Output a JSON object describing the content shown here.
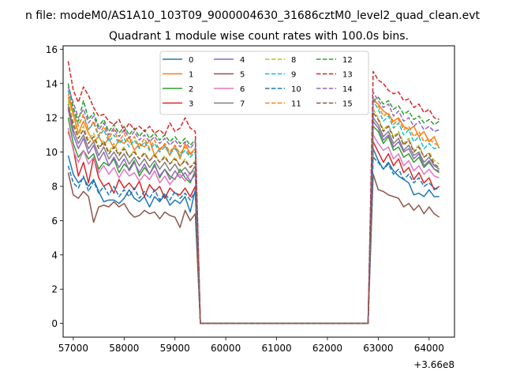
{
  "chart_data": {
    "type": "line",
    "suptitle": "n file: modeM0/AS1A10_103T09_9000004630_31686cztM0_level2_quad_clean.evt",
    "title": "Quadrant 1 module wise count rates with 100.0s bins.",
    "xlabel": "",
    "ylabel": "",
    "x_offset_label": "+3.66e8",
    "xlim": [
      56800,
      64500
    ],
    "ylim": [
      -0.8,
      16.2
    ],
    "xticks": [
      57000,
      58000,
      59000,
      60000,
      61000,
      62000,
      63000,
      64000
    ],
    "xtick_labels": [
      "57000",
      "58000",
      "59000",
      "60000",
      "61000",
      "62000",
      "63000",
      "64000"
    ],
    "yticks": [
      0,
      2,
      4,
      6,
      8,
      10,
      12,
      14,
      16
    ],
    "ytick_labels": [
      "0",
      "2",
      "4",
      "6",
      "8",
      "10",
      "12",
      "14",
      "16"
    ],
    "gap": {
      "drop_start": 59400,
      "zero_start": 59500,
      "zero_end": 62800,
      "rise_end": 62900
    },
    "segment1": {
      "x_start": 56900,
      "x_end": 59400,
      "step": 100
    },
    "segment2": {
      "x_start": 62900,
      "x_end": 64200,
      "step": 100
    },
    "legend_location": "upper-center",
    "series": [
      {
        "name": "0",
        "color": "#1f77b4",
        "dash": "solid",
        "seg1": [
          9.8,
          8.7,
          8.2,
          8.5,
          8.0,
          8.4,
          7.7,
          7.1,
          7.2,
          7.2,
          7.0,
          7.3,
          7.8,
          7.3,
          7.1,
          7.4,
          6.8,
          7.4,
          7.1,
          7.5,
          6.9,
          7.2,
          7.0,
          7.4,
          6.5,
          7.8
        ],
        "seg2": [
          10.2,
          9.5,
          9.0,
          9.4,
          8.9,
          8.6,
          8.4,
          8.2,
          7.5,
          7.6,
          7.4,
          7.8,
          7.4,
          7.4
        ]
      },
      {
        "name": "1",
        "color": "#ff7f0e",
        "dash": "solid",
        "seg1": [
          13.2,
          12.2,
          11.1,
          11.8,
          11.1,
          10.6,
          10.9,
          10.4,
          10.8,
          10.2,
          10.7,
          10.5,
          10.9,
          10.1,
          10.5,
          10.3,
          10.7,
          9.8,
          10.2,
          10.4,
          9.8,
          10.4,
          9.6,
          10.5,
          9.9,
          10.2
        ],
        "seg2": [
          13.0,
          12.8,
          12.4,
          12.2,
          11.8,
          12.0,
          11.5,
          11.3,
          11.5,
          10.9,
          11.2,
          10.6,
          10.9,
          10.2
        ]
      },
      {
        "name": "2",
        "color": "#2ca02c",
        "dash": "solid",
        "seg1": [
          12.0,
          10.5,
          9.7,
          10.1,
          9.6,
          9.9,
          9.0,
          9.4,
          9.2,
          9.6,
          8.8,
          9.3,
          9.0,
          9.5,
          8.6,
          9.1,
          8.7,
          9.3,
          8.5,
          9.0,
          8.6,
          8.4,
          9.0,
          8.5,
          8.2,
          8.9
        ],
        "seg2": [
          11.5,
          11.2,
          10.5,
          10.9,
          10.1,
          10.3,
          9.7,
          9.9,
          9.4,
          9.7,
          9.1,
          9.4,
          9.0,
          8.8
        ]
      },
      {
        "name": "3",
        "color": "#d62728",
        "dash": "solid",
        "seg1": [
          11.2,
          10.2,
          8.6,
          9.4,
          8.2,
          9.7,
          8.5,
          8.0,
          8.2,
          7.6,
          8.4,
          7.9,
          8.2,
          7.8,
          8.3,
          7.4,
          8.1,
          7.7,
          8.0,
          7.3,
          7.9,
          7.6,
          7.5,
          7.9,
          7.4,
          8.0
        ],
        "seg2": [
          10.6,
          10.0,
          9.4,
          9.9,
          9.2,
          9.6,
          8.8,
          9.1,
          8.4,
          8.8,
          8.2,
          8.5,
          7.8,
          8.0
        ]
      },
      {
        "name": "4",
        "color": "#9467bd",
        "dash": "solid",
        "seg1": [
          12.5,
          11.0,
          10.2,
          10.8,
          9.9,
          10.4,
          9.5,
          10.0,
          9.2,
          9.7,
          9.1,
          9.6,
          8.9,
          9.4,
          8.8,
          9.3,
          8.7,
          9.2,
          8.6,
          9.0,
          8.4,
          8.9,
          8.5,
          8.8,
          8.3,
          8.7
        ],
        "seg2": [
          11.8,
          11.4,
          10.7,
          11.0,
          10.3,
          10.6,
          10.0,
          10.2,
          9.6,
          9.9,
          9.2,
          9.5,
          9.0,
          8.9
        ]
      },
      {
        "name": "5",
        "color": "#8c564b",
        "dash": "solid",
        "seg1": [
          8.8,
          7.5,
          7.3,
          7.7,
          7.4,
          5.9,
          6.8,
          6.9,
          6.8,
          7.1,
          6.8,
          7.0,
          6.5,
          6.2,
          6.3,
          6.6,
          6.4,
          6.5,
          6.1,
          6.5,
          6.3,
          6.2,
          5.6,
          6.6,
          6.0,
          6.4
        ],
        "seg2": [
          8.7,
          7.8,
          7.7,
          7.5,
          7.4,
          7.3,
          6.8,
          7.0,
          6.6,
          6.9,
          6.4,
          6.8,
          6.4,
          6.2
        ]
      },
      {
        "name": "6",
        "color": "#e377c2",
        "dash": "solid",
        "seg1": [
          11.4,
          10.1,
          9.4,
          10.1,
          9.3,
          9.7,
          8.8,
          9.2,
          8.7,
          9.1,
          8.5,
          9.0,
          8.6,
          8.8,
          8.3,
          8.7,
          8.4,
          8.9,
          8.2,
          8.6,
          8.1,
          8.5,
          8.7,
          8.3,
          8.8,
          8.9
        ],
        "seg2": [
          11.0,
          10.5,
          10.1,
          10.3,
          9.6,
          9.9,
          9.2,
          9.5,
          8.9,
          9.2,
          8.7,
          9.0,
          8.6,
          8.5
        ]
      },
      {
        "name": "7",
        "color": "#7f7f7f",
        "dash": "solid",
        "seg1": [
          12.8,
          11.3,
          10.5,
          11.0,
          10.2,
          10.6,
          9.8,
          10.3,
          9.6,
          10.0,
          9.5,
          9.9,
          9.3,
          9.7,
          9.2,
          9.6,
          9.1,
          9.5,
          9.0,
          9.4,
          8.9,
          9.3,
          8.8,
          9.1,
          8.7,
          9.2
        ],
        "seg2": [
          12.0,
          11.6,
          10.9,
          11.2,
          10.5,
          10.8,
          10.1,
          10.4,
          9.8,
          10.0,
          9.4,
          9.7,
          9.2,
          9.0
        ]
      },
      {
        "name": "8",
        "color": "#bcbd22",
        "dash": "dashed",
        "seg1": [
          13.0,
          11.8,
          11.0,
          11.5,
          10.7,
          11.1,
          10.3,
          10.7,
          10.0,
          10.5,
          9.9,
          10.3,
          9.7,
          10.1,
          9.6,
          10.0,
          9.5,
          9.9,
          9.4,
          9.8,
          9.3,
          9.7,
          9.2,
          9.6,
          9.1,
          9.5
        ],
        "seg2": [
          12.5,
          12.0,
          11.3,
          11.6,
          10.9,
          11.2,
          10.5,
          10.8,
          10.1,
          10.4,
          9.7,
          10.0,
          9.5,
          9.3
        ]
      },
      {
        "name": "9",
        "color": "#17becf",
        "dash": "dashed",
        "seg1": [
          13.6,
          12.4,
          11.6,
          12.1,
          11.3,
          11.7,
          10.9,
          11.3,
          10.6,
          11.0,
          10.5,
          10.8,
          10.3,
          10.7,
          10.2,
          10.6,
          10.1,
          10.5,
          10.0,
          10.3,
          9.9,
          10.2,
          9.8,
          10.1,
          9.7,
          10.0
        ],
        "seg2": [
          13.0,
          12.5,
          11.8,
          12.1,
          11.4,
          11.7,
          11.0,
          11.3,
          10.6,
          10.9,
          10.2,
          10.5,
          10.2,
          10.3
        ]
      },
      {
        "name": "10",
        "color": "#1f77b4",
        "dash": "dashed",
        "seg1": [
          9.2,
          8.2,
          7.9,
          8.6,
          7.7,
          8.3,
          7.6,
          8.0,
          7.5,
          8.0,
          7.4,
          7.8,
          7.4,
          7.9,
          7.3,
          7.7,
          7.3,
          7.8,
          7.2,
          7.6,
          7.2,
          7.7,
          7.3,
          7.6,
          7.2,
          7.7
        ],
        "seg2": [
          9.7,
          9.4,
          9.0,
          9.3,
          8.7,
          9.0,
          8.4,
          8.7,
          8.2,
          8.5,
          8.0,
          8.2,
          7.9,
          7.8
        ]
      },
      {
        "name": "11",
        "color": "#ff7f0e",
        "dash": "dashed",
        "seg1": [
          13.4,
          12.3,
          11.5,
          12.2,
          11.3,
          11.8,
          11.0,
          11.5,
          10.8,
          11.3,
          10.6,
          11.1,
          10.5,
          10.9,
          10.3,
          10.8,
          10.2,
          10.7,
          10.1,
          10.5,
          10.0,
          10.4,
          9.9,
          10.3,
          9.8,
          10.2
        ],
        "seg2": [
          13.2,
          12.7,
          12.1,
          12.3,
          11.6,
          11.9,
          11.3,
          11.5,
          10.9,
          11.2,
          10.6,
          10.8,
          10.5,
          10.4
        ]
      },
      {
        "name": "12",
        "color": "#2ca02c",
        "dash": "dashed",
        "seg1": [
          14.0,
          12.6,
          11.8,
          13.0,
          11.9,
          12.3,
          11.5,
          11.9,
          11.2,
          11.6,
          11.1,
          11.5,
          11.0,
          11.4,
          10.9,
          11.3,
          10.8,
          11.1,
          10.7,
          11.0,
          10.6,
          10.9,
          10.5,
          10.8,
          10.4,
          10.7
        ],
        "seg2": [
          13.0,
          13.2,
          12.8,
          13.0,
          12.5,
          12.7,
          12.2,
          12.4,
          11.9,
          12.1,
          11.7,
          11.9,
          11.6,
          11.8
        ]
      },
      {
        "name": "13",
        "color": "#d62728",
        "dash": "dashed",
        "seg1": [
          15.3,
          13.6,
          12.9,
          13.8,
          13.3,
          12.6,
          12.1,
          12.2,
          11.8,
          11.6,
          11.9,
          11.2,
          11.7,
          11.3,
          11.5,
          11.2,
          11.5,
          11.1,
          11.3,
          11.0,
          11.7,
          11.2,
          11.4,
          12.0,
          11.4,
          11.2
        ],
        "seg2": [
          14.7,
          14.2,
          14.0,
          13.6,
          13.4,
          13.5,
          13.0,
          13.1,
          12.6,
          12.8,
          12.3,
          12.5,
          12.0,
          11.9
        ]
      },
      {
        "name": "14",
        "color": "#9467bd",
        "dash": "dashed",
        "seg1": [
          13.8,
          12.9,
          12.0,
          12.5,
          11.7,
          12.1,
          11.3,
          11.7,
          11.0,
          11.4,
          10.9,
          11.3,
          10.8,
          11.2,
          10.7,
          11.0,
          10.6,
          10.9,
          10.5,
          10.8,
          10.4,
          10.7,
          10.3,
          10.6,
          10.2,
          10.6
        ],
        "seg2": [
          13.5,
          13.0,
          12.6,
          12.8,
          12.1,
          12.4,
          11.8,
          12.0,
          11.5,
          11.8,
          11.3,
          11.5,
          11.2,
          11.3
        ]
      },
      {
        "name": "15",
        "color": "#8c564b",
        "dash": "dashed",
        "seg1": [
          12.6,
          11.6,
          10.8,
          11.3,
          10.5,
          10.9,
          10.2,
          10.6,
          9.9,
          10.3,
          9.8,
          10.2,
          9.7,
          10.0,
          9.6,
          9.9,
          9.5,
          9.8,
          9.4,
          9.7,
          9.3,
          9.6,
          9.2,
          9.5,
          9.1,
          9.4
        ],
        "seg2": [
          12.3,
          11.9,
          11.2,
          11.5,
          10.8,
          11.1,
          10.4,
          10.7,
          10.0,
          10.3,
          9.7,
          9.9,
          9.3,
          9.1
        ]
      }
    ]
  }
}
